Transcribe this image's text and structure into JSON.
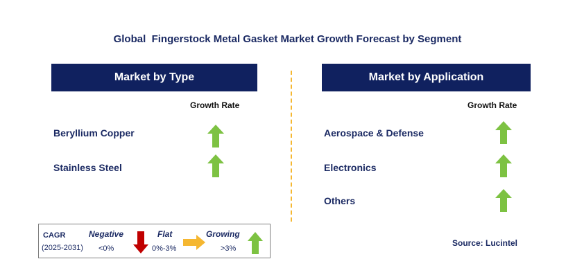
{
  "title": "Global  Fingerstock Metal Gasket Market Growth Forecast by Segment",
  "left_panel": {
    "header": "Market by Type",
    "column_header": "Growth Rate",
    "rows": [
      {
        "label": "Beryllium Copper",
        "trend": "growing"
      },
      {
        "label": "Stainless Steel",
        "trend": "growing"
      }
    ]
  },
  "right_panel": {
    "header": "Market by Application",
    "column_header": "Growth Rate",
    "rows": [
      {
        "label": "Aerospace & Defense",
        "trend": "growing"
      },
      {
        "label": "Electronics",
        "trend": "growing"
      },
      {
        "label": "Others",
        "trend": "growing"
      }
    ]
  },
  "legend": {
    "cagr_label": "CAGR",
    "period": "(2025-2031)",
    "negative": {
      "label": "Negative",
      "range": "<0%",
      "icon": "down-arrow-icon"
    },
    "flat": {
      "label": "Flat",
      "range": "0%-3%",
      "icon": "right-arrow-icon"
    },
    "growing": {
      "label": "Growing",
      "range": ">3%",
      "icon": "up-arrow-icon"
    }
  },
  "source": "Source: Lucintel",
  "colors": {
    "header_bg": "#10215f",
    "title_text": "#1b2a63",
    "growing": "#7dc242",
    "flat": "#f5b731",
    "negative": "#c00000",
    "divider": "#f5b731"
  }
}
